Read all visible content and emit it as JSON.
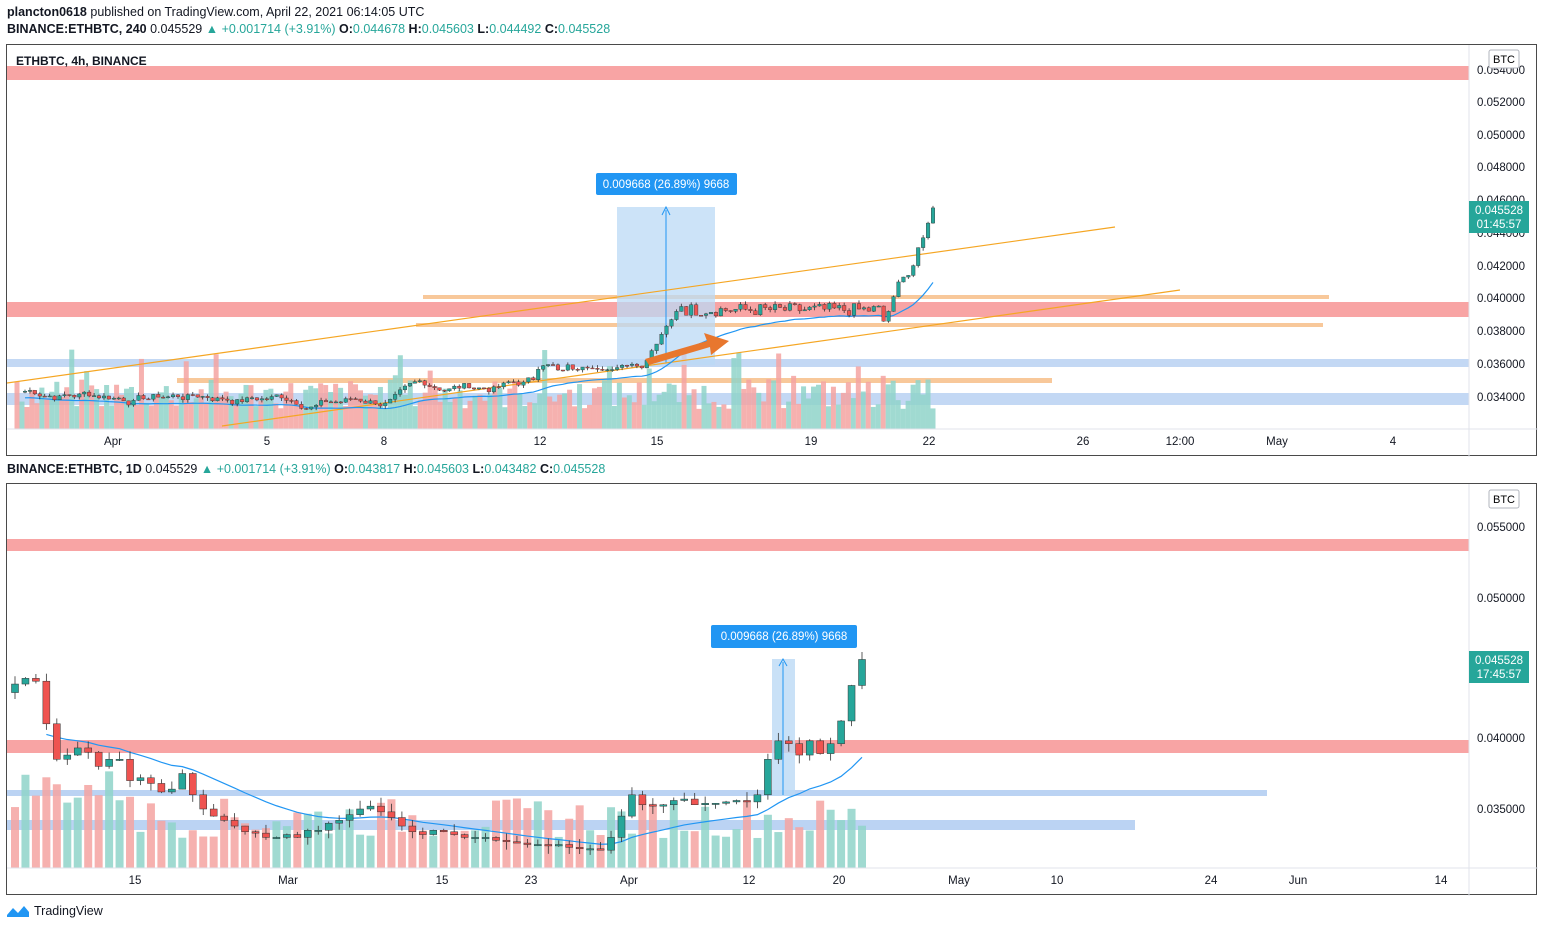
{
  "header": {
    "author": "plancton0618",
    "published_text": "published on TradingView.com, April 22, 2021 06:14:05 UTC"
  },
  "top_panel": {
    "symbol_line": "BINANCE:ETHBTC, 240",
    "price": "0.045529",
    "change": "▲ +0.001714 (+3.91%)",
    "o_label": "O:",
    "o": "0.044678",
    "h_label": "H:",
    "h": "0.045603",
    "l_label": "L:",
    "l": "0.044492",
    "c_label": "C:",
    "c": "0.045528",
    "legend": "ETHBTC, 4h, BINANCE",
    "currency": "BTC",
    "price_tag": "0.045528",
    "countdown": "01:45:57",
    "measure_label": "0.009668 (26.89%) 9668",
    "y_ticks": [
      "0.052000",
      "0.050000",
      "0.048000",
      "0.046000",
      "0.044000",
      "0.042000",
      "0.040000",
      "0.038000",
      "0.036000",
      "0.034000"
    ],
    "y_tick_top_clipped": "0.054000",
    "x_ticks": [
      "Apr",
      "5",
      "8",
      "12",
      "15",
      "19",
      "22",
      "26",
      "12:00",
      "May",
      "4"
    ]
  },
  "bottom_panel": {
    "symbol_line": "BINANCE:ETHBTC, 1D",
    "price": "0.045529",
    "change": "▲ +0.001714 (+3.91%)",
    "o_label": "O:",
    "o": "0.043817",
    "h_label": "H:",
    "h": "0.045603",
    "l_label": "L:",
    "l": "0.043482",
    "c_label": "C:",
    "c": "0.045528",
    "currency": "BTC",
    "price_tag": "0.045528",
    "countdown": "17:45:57",
    "measure_label": "0.009668 (26.89%) 9668",
    "y_ticks": [
      "0.055000",
      "0.050000",
      "0.040000",
      "0.035000"
    ],
    "x_ticks": [
      "15",
      "Mar",
      "15",
      "23",
      "Apr",
      "12",
      "20",
      "May",
      "10",
      "24",
      "Jun",
      "14"
    ]
  },
  "colors": {
    "up": "#26a69a",
    "down": "#ef5350",
    "resistance_zone": "#f8a4a4",
    "support_zone": "#aac8f0",
    "trendline": "#f5a623",
    "ma_line": "#2196f3",
    "measure_fill": "#bbdaf5",
    "arrow": "#e8772e"
  },
  "footer": {
    "brand": "TradingView",
    "logo_icon": "tradingview-logo-icon"
  }
}
